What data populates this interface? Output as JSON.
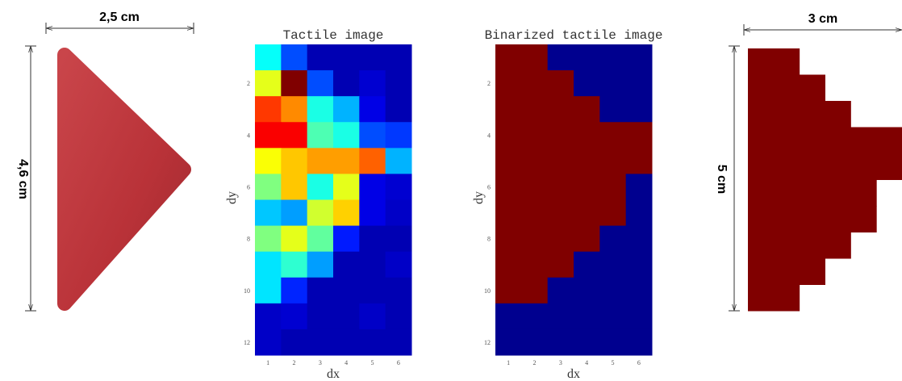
{
  "object": {
    "width_label": "2,5 cm",
    "height_label": "4,6 cm"
  },
  "tactile": {
    "title": "Tactile image",
    "x_label": "dx",
    "y_label": "dy",
    "x_ticks": [
      1,
      2,
      3,
      4,
      5,
      6
    ],
    "y_ticks": [
      2,
      4,
      6,
      8,
      10,
      12
    ],
    "cells": [
      [
        0.38,
        0.2,
        0.05,
        0.05,
        0.05,
        0.05
      ],
      [
        0.6,
        1.0,
        0.2,
        0.05,
        0.08,
        0.05
      ],
      [
        0.82,
        0.74,
        0.4,
        0.3,
        0.1,
        0.05
      ],
      [
        0.88,
        0.88,
        0.45,
        0.4,
        0.2,
        0.18
      ],
      [
        0.62,
        0.68,
        0.72,
        0.72,
        0.78,
        0.3
      ],
      [
        0.5,
        0.68,
        0.4,
        0.6,
        0.1,
        0.08
      ],
      [
        0.32,
        0.28,
        0.58,
        0.67,
        0.1,
        0.07
      ],
      [
        0.5,
        0.6,
        0.47,
        0.15,
        0.05,
        0.05
      ],
      [
        0.35,
        0.42,
        0.28,
        0.05,
        0.05,
        0.07
      ],
      [
        0.35,
        0.16,
        0.05,
        0.05,
        0.05,
        0.05
      ],
      [
        0.07,
        0.08,
        0.05,
        0.05,
        0.07,
        0.05
      ],
      [
        0.07,
        0.05,
        0.05,
        0.05,
        0.05,
        0.05
      ]
    ]
  },
  "binarized": {
    "title": "Binarized tactile image",
    "x_label": "dx",
    "y_label": "dy",
    "x_ticks": [
      1,
      2,
      3,
      4,
      5,
      6
    ],
    "y_ticks": [
      2,
      4,
      6,
      8,
      10,
      12
    ],
    "cells": [
      [
        1,
        1,
        0,
        0,
        0,
        0
      ],
      [
        1,
        1,
        1,
        0,
        0,
        0
      ],
      [
        1,
        1,
        1,
        1,
        0,
        0
      ],
      [
        1,
        1,
        1,
        1,
        1,
        1
      ],
      [
        1,
        1,
        1,
        1,
        1,
        1
      ],
      [
        1,
        1,
        1,
        1,
        1,
        0
      ],
      [
        1,
        1,
        1,
        1,
        1,
        0
      ],
      [
        1,
        1,
        1,
        1,
        0,
        0
      ],
      [
        1,
        1,
        1,
        0,
        0,
        0
      ],
      [
        1,
        1,
        0,
        0,
        0,
        0
      ],
      [
        0,
        0,
        0,
        0,
        0,
        0
      ],
      [
        0,
        0,
        0,
        0,
        0,
        0
      ]
    ]
  },
  "shape": {
    "width_label": "3 cm",
    "height_label": "5 cm"
  }
}
